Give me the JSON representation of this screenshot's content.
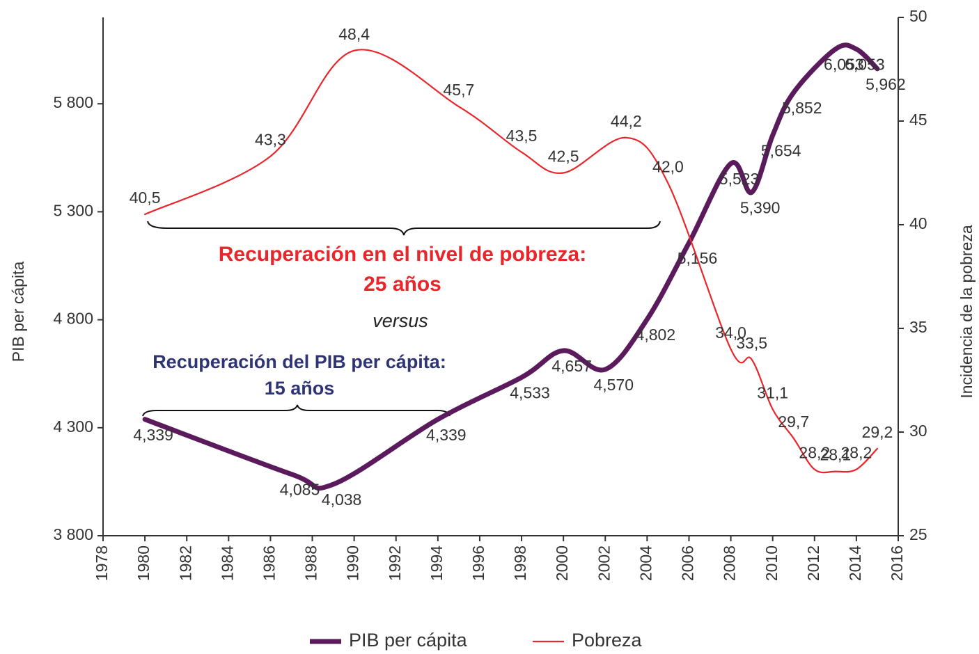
{
  "chart_data": {
    "type": "line",
    "x_label": null,
    "y_label": "PIB per cápita",
    "y2_label": "Incidencia de la pobreza",
    "annotations": [
      "Recuperación en el nivel de pobreza:",
      "25 años",
      "versus",
      "Recuperación del PIB per cápita:",
      "15 años"
    ],
    "xlim": [
      1978,
      2016
    ],
    "xticks": [
      1978,
      1980,
      1982,
      1984,
      1986,
      1988,
      1990,
      1992,
      1994,
      1996,
      1998,
      2000,
      2002,
      2004,
      2006,
      2008,
      2010,
      2012,
      2014,
      2016
    ],
    "ylim": [
      3800,
      6200
    ],
    "yticks": [
      {
        "value": 3800,
        "label": "3 800"
      },
      {
        "value": 4300,
        "label": "4 300"
      },
      {
        "value": 4800,
        "label": "4 800"
      },
      {
        "value": 5300,
        "label": "5 300"
      },
      {
        "value": 5800,
        "label": "5 800"
      }
    ],
    "y2lim": [
      25,
      50
    ],
    "y2ticks": [
      25,
      30,
      35,
      40,
      45,
      50
    ],
    "legend": "bottom",
    "series": [
      {
        "name": "PIB per cápita",
        "color": "#5a1a5c",
        "axis": "y",
        "x": [
          1980,
          1987,
          1989,
          1994,
          1998,
          2000,
          2002,
          2004,
          2006,
          2008,
          2009,
          2010,
          2011,
          2013,
          2014,
          2015
        ],
        "values": [
          4339,
          4085,
          4038,
          4339,
          4533,
          4657,
          4570,
          4802,
          5156,
          5523,
          5390,
          5654,
          5852,
          6053,
          6053,
          5962
        ],
        "value_labels": [
          "4,339",
          "4,085",
          "4,038",
          "4,339",
          "4,533",
          "4,657",
          "4,570",
          "4,802",
          "5,156",
          "5,523",
          "5,390",
          "5,654",
          "5,852",
          "6,053",
          "6,053",
          "5,962"
        ]
      },
      {
        "name": "Pobreza",
        "color": "#e8262b",
        "axis": "y2",
        "x": [
          1980,
          1986,
          1990,
          1995,
          1998,
          2000,
          2003,
          2005,
          2008,
          2009,
          2010,
          2011,
          2012,
          2013,
          2014,
          2015
        ],
        "values": [
          40.5,
          43.3,
          48.4,
          45.7,
          43.5,
          42.5,
          44.2,
          42.0,
          34.0,
          33.5,
          31.1,
          29.7,
          28.2,
          28.1,
          28.2,
          29.2
        ],
        "value_labels": [
          "40,5",
          "43,3",
          "48,4",
          "45,7",
          "43,5",
          "42,5",
          "44,2",
          "42,0",
          "34,0",
          "33,5",
          "31,1",
          "29,7",
          "28,2",
          "28,1",
          "28,2",
          "29,2"
        ]
      }
    ]
  }
}
